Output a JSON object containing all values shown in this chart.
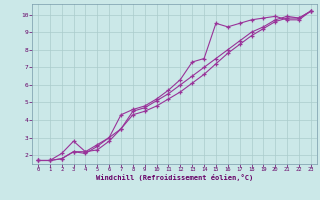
{
  "background_color": "#cbe8e8",
  "grid_color": "#aacccc",
  "line_color": "#993399",
  "xlabel": "Windchill (Refroidissement éolien,°C)",
  "xlabel_color": "#660066",
  "tick_color": "#660066",
  "xlim": [
    -0.5,
    23.5
  ],
  "ylim": [
    1.5,
    10.6
  ],
  "xticks": [
    0,
    1,
    2,
    3,
    4,
    5,
    6,
    7,
    8,
    9,
    10,
    11,
    12,
    13,
    14,
    15,
    16,
    17,
    18,
    19,
    20,
    21,
    22,
    23
  ],
  "yticks": [
    2,
    3,
    4,
    5,
    6,
    7,
    8,
    9,
    10
  ],
  "line1_x": [
    0,
    1,
    2,
    3,
    4,
    5,
    6,
    7,
    8,
    9,
    10,
    11,
    12,
    13,
    14,
    15,
    16,
    17,
    18,
    19,
    20,
    21,
    22,
    23
  ],
  "line1_y": [
    1.7,
    1.7,
    1.8,
    2.2,
    2.1,
    2.5,
    3.0,
    3.5,
    4.3,
    4.5,
    4.8,
    5.2,
    5.6,
    6.1,
    6.6,
    7.2,
    7.8,
    8.3,
    8.8,
    9.2,
    9.6,
    9.8,
    9.8,
    10.2
  ],
  "line2_x": [
    0,
    1,
    2,
    3,
    4,
    5,
    6,
    7,
    8,
    9,
    10,
    11,
    12,
    13,
    14,
    15,
    16,
    17,
    18,
    19,
    20,
    21,
    22,
    23
  ],
  "line2_y": [
    1.7,
    1.7,
    2.1,
    2.8,
    2.2,
    2.6,
    3.0,
    4.3,
    4.6,
    4.8,
    5.2,
    5.7,
    6.3,
    7.3,
    7.5,
    9.5,
    9.3,
    9.5,
    9.7,
    9.8,
    9.9,
    9.7,
    9.7,
    10.2
  ],
  "line3_x": [
    0,
    1,
    2,
    3,
    4,
    5,
    6,
    7,
    8,
    9,
    10,
    11,
    12,
    13,
    14,
    15,
    16,
    17,
    18,
    19,
    20,
    21,
    22,
    23
  ],
  "line3_y": [
    1.7,
    1.7,
    1.8,
    2.2,
    2.2,
    2.3,
    2.8,
    3.5,
    4.5,
    4.7,
    5.1,
    5.5,
    6.0,
    6.5,
    7.0,
    7.5,
    8.0,
    8.5,
    9.0,
    9.3,
    9.7,
    9.9,
    9.8,
    10.2
  ]
}
